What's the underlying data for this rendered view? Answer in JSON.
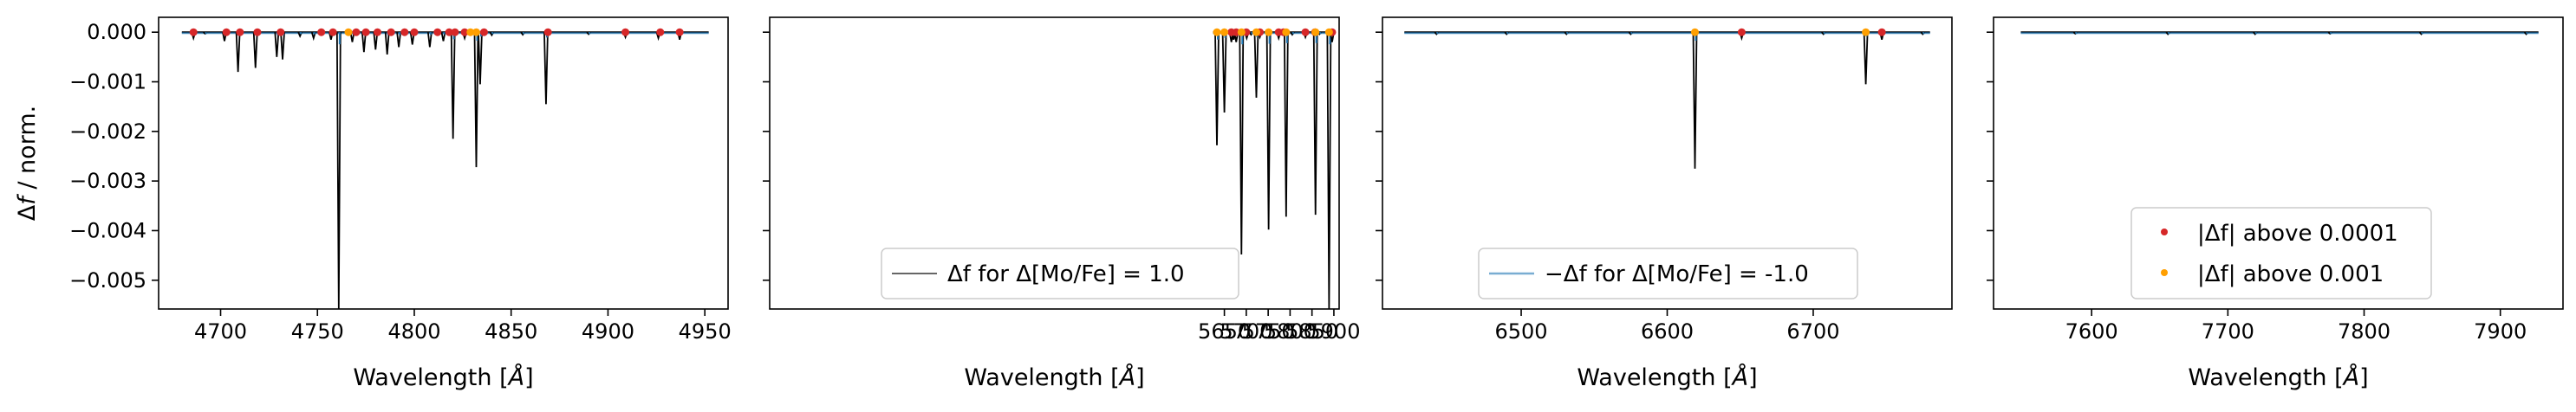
{
  "chart_data": [
    {
      "type": "line",
      "xlabel": "Wavelength [$\\AA$]",
      "ylabel": "$\\Delta f$ / norm.",
      "xlim": [
        4668,
        4962
      ],
      "ylim": [
        -0.00558,
        0.0003
      ],
      "xticks": [
        4700,
        4750,
        4800,
        4850,
        4900,
        4950
      ],
      "yticks": [
        0.0,
        -0.001,
        -0.002,
        -0.003,
        -0.004,
        -0.005
      ],
      "ytick_labels": [
        "0.000",
        "−0.001",
        "−0.002",
        "−0.003",
        "−0.004",
        "−0.005"
      ],
      "xrange_data": [
        4680,
        4952
      ],
      "lines": [
        {
          "x": 4686,
          "y": -0.00012
        },
        {
          "x": 4692,
          "y": -3e-05
        },
        {
          "x": 4702,
          "y": -0.00018
        },
        {
          "x": 4709,
          "y": -0.0008
        },
        {
          "x": 4718,
          "y": -0.00072
        },
        {
          "x": 4729,
          "y": -0.0005
        },
        {
          "x": 4732,
          "y": -0.00055
        },
        {
          "x": 4741,
          "y": -8e-05
        },
        {
          "x": 4748,
          "y": -0.00012
        },
        {
          "x": 4757,
          "y": -0.00015
        },
        {
          "x": 4761,
          "y": -0.00558
        },
        {
          "x": 4768,
          "y": -0.0002
        },
        {
          "x": 4774,
          "y": -0.0004
        },
        {
          "x": 4780,
          "y": -0.00035
        },
        {
          "x": 4786,
          "y": -0.00045
        },
        {
          "x": 4792,
          "y": -0.0003
        },
        {
          "x": 4799,
          "y": -0.00025
        },
        {
          "x": 4808,
          "y": -0.0003
        },
        {
          "x": 4815,
          "y": -0.00018
        },
        {
          "x": 4820,
          "y": -0.00215
        },
        {
          "x": 4826,
          "y": -0.00012
        },
        {
          "x": 4832,
          "y": -0.00272
        },
        {
          "x": 4834,
          "y": -0.00105
        },
        {
          "x": 4840,
          "y": -6e-05
        },
        {
          "x": 4856,
          "y": -5e-05
        },
        {
          "x": 4868,
          "y": -0.00145
        },
        {
          "x": 4890,
          "y": -4e-05
        },
        {
          "x": 4909,
          "y": -0.0001
        },
        {
          "x": 4926,
          "y": -0.00012
        },
        {
          "x": 4937,
          "y": -0.00015
        }
      ],
      "markers_red": [
        4686,
        4703,
        4710,
        4719,
        4731,
        4752,
        4758,
        4770,
        4775,
        4781,
        4788,
        4795,
        4800,
        4812,
        4818,
        4821,
        4826,
        4836,
        4869,
        4909,
        4927,
        4937
      ],
      "markers_orange": [
        4766,
        4829,
        4832
      ]
    },
    {
      "type": "line",
      "xlabel": "Wavelength [$\\AA$]",
      "xlim": [
        4612,
        5912
      ],
      "ylim": [
        -0.00558,
        0.0003
      ],
      "xticks": [
        5650,
        5700,
        5750,
        5800,
        5850,
        5900
      ],
      "xrange_data": [
        5624,
        5903
      ],
      "lines": [
        {
          "x": 5633,
          "y": -0.00228
        },
        {
          "x": 5650,
          "y": -0.00162
        },
        {
          "x": 5666,
          "y": -0.0002
        },
        {
          "x": 5671,
          "y": -0.00015
        },
        {
          "x": 5677,
          "y": -0.0002
        },
        {
          "x": 5689,
          "y": -0.00448
        },
        {
          "x": 5701,
          "y": -0.00012
        },
        {
          "x": 5711,
          "y": -5e-05
        },
        {
          "x": 5723,
          "y": -0.00132
        },
        {
          "x": 5731,
          "y": -0.0001
        },
        {
          "x": 5751,
          "y": -0.00398
        },
        {
          "x": 5774,
          "y": -0.00012
        },
        {
          "x": 5791,
          "y": -0.00372
        },
        {
          "x": 5805,
          "y": -5e-05
        },
        {
          "x": 5835,
          "y": -0.0001
        },
        {
          "x": 5858,
          "y": -0.00368
        },
        {
          "x": 5867,
          "y": -4e-05
        },
        {
          "x": 5889,
          "y": -0.00558
        },
        {
          "x": 5896,
          "y": -0.0002
        }
      ],
      "markers_red": [
        5666,
        5677,
        5700,
        5731,
        5774,
        5785,
        5835,
        5857,
        5896
      ],
      "markers_orange": [
        5633,
        5650,
        5689,
        5723,
        5751,
        5791,
        5858,
        5889
      ],
      "legend": {
        "label": "$\\Delta f$ for $\\Delta$[Mo/Fe] = 1.0",
        "position": "lower center"
      }
    },
    {
      "type": "line",
      "xlabel": "Wavelength [$\\AA$]",
      "xlim": [
        6405,
        6795
      ],
      "ylim": [
        -0.00558,
        0.0003
      ],
      "xticks": [
        6500,
        6600,
        6700
      ],
      "xrange_data": [
        6420,
        6780
      ],
      "lines": [
        {
          "x": 6442,
          "y": -4e-05
        },
        {
          "x": 6490,
          "y": -4e-05
        },
        {
          "x": 6531,
          "y": -4e-05
        },
        {
          "x": 6575,
          "y": -4e-05
        },
        {
          "x": 6619,
          "y": -0.00275
        },
        {
          "x": 6651,
          "y": -0.00012
        },
        {
          "x": 6707,
          "y": -4e-05
        },
        {
          "x": 6736,
          "y": -0.00105
        },
        {
          "x": 6747,
          "y": -0.00015
        },
        {
          "x": 6775,
          "y": -4e-05
        }
      ],
      "markers_red": [
        6651,
        6747
      ],
      "markers_orange": [
        6619,
        6736
      ],
      "legend": {
        "label": "$-\\Delta f$ for $\\Delta$[Mo/Fe] = -1.0",
        "position": "lower center"
      }
    },
    {
      "type": "line",
      "xlabel": "Wavelength [$\\AA$]",
      "xlim": [
        7528,
        7946
      ],
      "ylim": [
        -0.00558,
        0.0003
      ],
      "xticks": [
        7600,
        7700,
        7800,
        7900
      ],
      "xrange_data": [
        7548,
        7928
      ],
      "lines": [
        {
          "x": 7588,
          "y": -3e-05
        },
        {
          "x": 7656,
          "y": -4e-05
        },
        {
          "x": 7720,
          "y": -4e-05
        },
        {
          "x": 7775,
          "y": -3e-05
        },
        {
          "x": 7842,
          "y": -4e-05
        },
        {
          "x": 7919,
          "y": -4e-05
        }
      ],
      "markers_red": [],
      "markers_orange": [],
      "legend": {
        "entries": [
          "$|\\Delta f|$ above 0.0001",
          "$|\\Delta f|$ above 0.001"
        ],
        "position": "lower center"
      }
    }
  ],
  "styles": {
    "delta_line_color": "#000000",
    "neg_line_color": "#1f77b4",
    "red_marker": "#d62728",
    "orange_marker": "#ff9f00"
  },
  "legend_texts": {
    "l1_label": "Δf for Δ[Mo/Fe] = 1.0",
    "l2_label": "−Δf for Δ[Mo/Fe] = -1.0",
    "l3_red": "|Δf| above 0.0001",
    "l3_orange": "|Δf| above 0.001"
  }
}
